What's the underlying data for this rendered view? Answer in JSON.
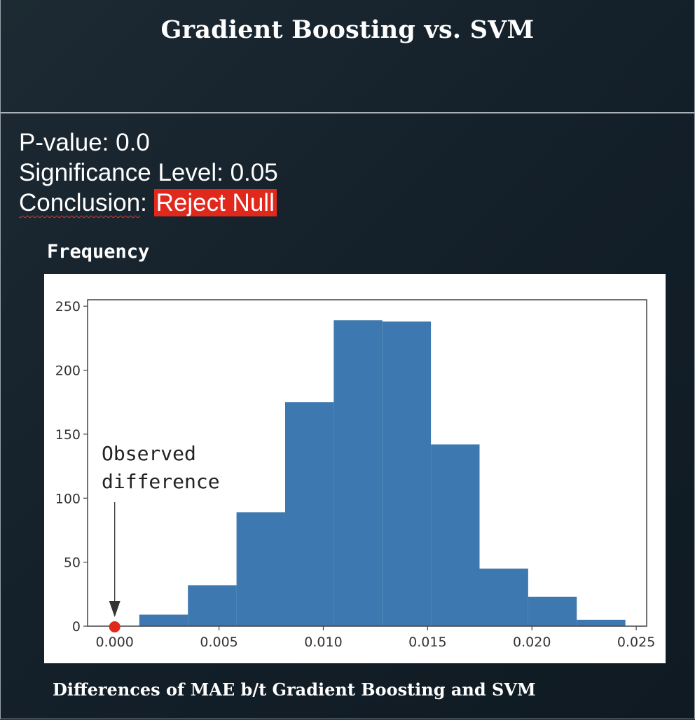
{
  "slide": {
    "title": "Gradient Boosting vs. SVM",
    "pvalue_label": "P-value:",
    "pvalue": "0.0",
    "significance_label": "Significance Level:",
    "significance": "0.05",
    "conclusion_label": "Conclusion",
    "conclusion_sep": ":",
    "conclusion_value": "Reject Null",
    "frequency_label": "Frequency",
    "caption": "Differences of MAE b/t Gradient Boosting and SVM"
  },
  "colors": {
    "bar": "#3d78b0",
    "badge": "#e0291c",
    "observed_marker": "#e0291c"
  },
  "chart_data": {
    "type": "bar",
    "title": "",
    "xlabel": "Differences of MAE b/t Gradient Boosting and SVM",
    "ylabel": "Frequency",
    "xlim": [
      -0.0013,
      0.0255
    ],
    "ylim": [
      0,
      255
    ],
    "xticks": [
      0.0,
      0.005,
      0.01,
      0.015,
      0.02,
      0.025
    ],
    "xtick_labels": [
      "0.000",
      "0.005",
      "0.010",
      "0.015",
      "0.020",
      "0.025"
    ],
    "yticks": [
      0,
      50,
      100,
      150,
      200,
      250
    ],
    "ytick_labels": [
      "0",
      "50",
      "100",
      "150",
      "200",
      "250"
    ],
    "bin_edges": [
      0.00118,
      0.00351,
      0.00584,
      0.00817,
      0.0105,
      0.01283,
      0.01516,
      0.01749,
      0.01982,
      0.02215,
      0.02448
    ],
    "values": [
      9,
      32,
      89,
      175,
      239,
      238,
      142,
      45,
      23,
      5
    ],
    "grid": false,
    "observed": {
      "x": 0.0,
      "label_line1": "Observed",
      "label_line2": "difference"
    }
  }
}
